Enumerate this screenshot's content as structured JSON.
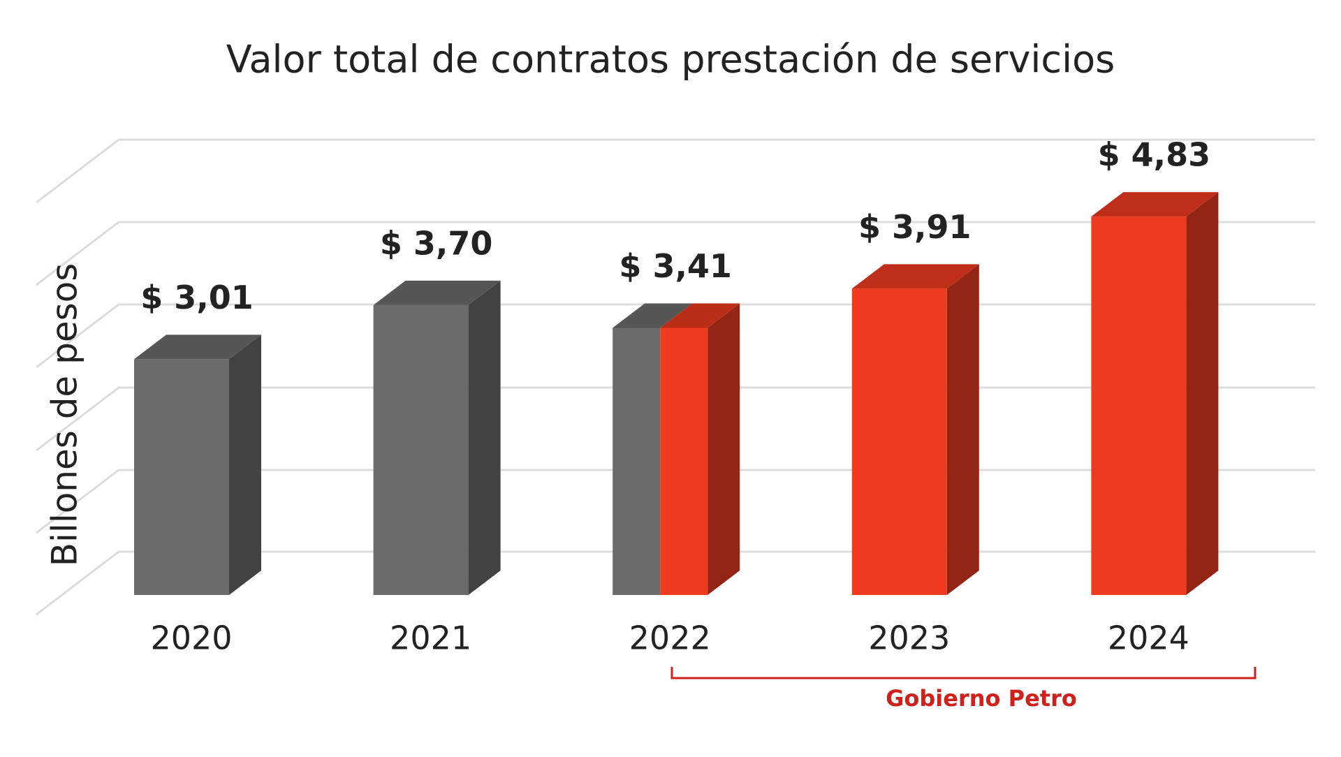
{
  "chart_data": {
    "type": "bar3d",
    "title": "Valor total de contratos prestación de servicios",
    "y_label": "Billones de pesos",
    "categories": [
      "2020",
      "2021",
      "2022",
      "2023",
      "2024"
    ],
    "values": [
      3.01,
      3.7,
      3.41,
      3.91,
      4.83
    ],
    "value_labels": [
      "$ 3,01",
      "$ 3,70",
      "$ 3,41",
      "$ 3,91",
      "$ 4,83"
    ],
    "colors": [
      [
        "#6b6b6b"
      ],
      [
        "#6b6b6b"
      ],
      [
        "#6b6b6b",
        "#ee3a1e"
      ],
      [
        "#ee3a1e"
      ],
      [
        "#ee3a1e"
      ]
    ],
    "ylim": [
      0,
      5.5
    ],
    "annotation": {
      "text": "Gobierno Petro",
      "color": "#d0201a"
    }
  }
}
